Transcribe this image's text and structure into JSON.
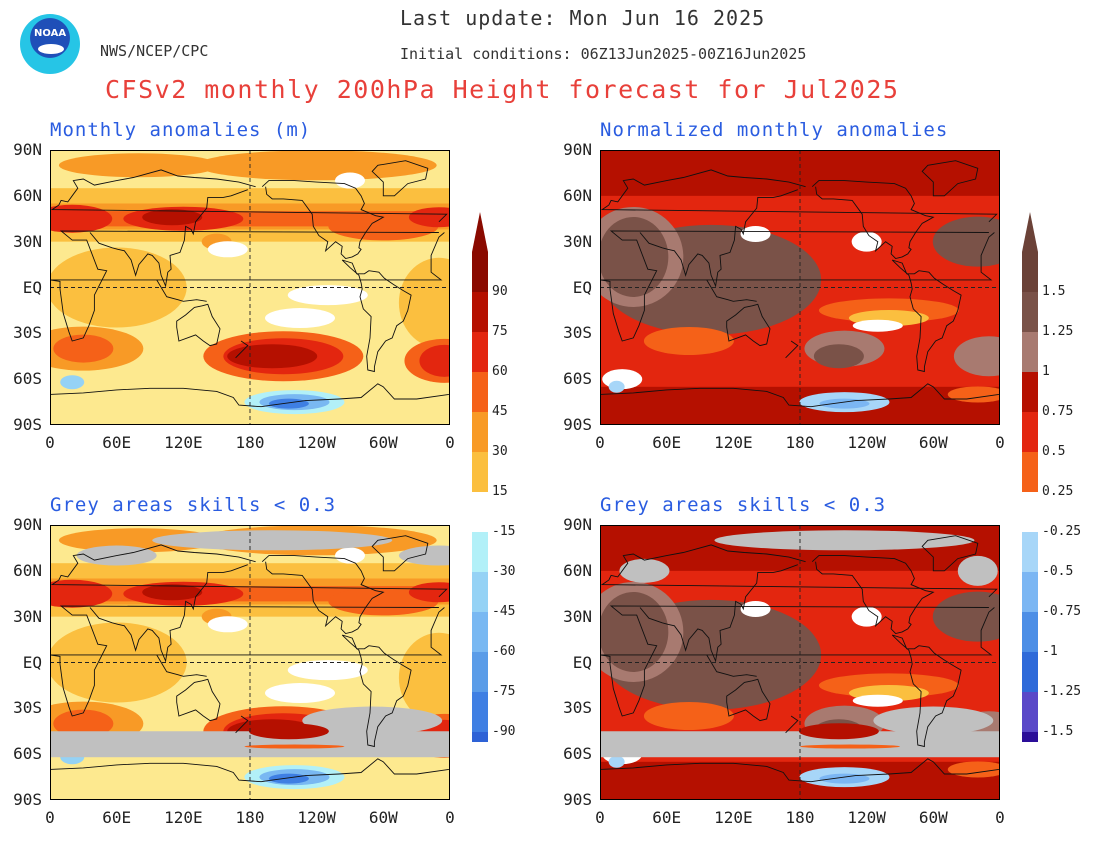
{
  "header": {
    "last_update": "Last update: Mon Jun 16 2025",
    "init_conditions": "Initial conditions: 06Z13Jun2025-00Z16Jun2025",
    "org": "NWS/NCEP/CPC",
    "title": "CFSv2 monthly 200hPa Height forecast for Jul2025",
    "logo_text": "NOAA"
  },
  "panels": [
    {
      "title": "Monthly anomalies (m)",
      "kind": "abs",
      "grey": false
    },
    {
      "title": "Normalized monthly anomalies",
      "kind": "norm",
      "grey": false
    },
    {
      "title": "Grey areas skills < 0.3",
      "kind": "abs",
      "grey": true
    },
    {
      "title": "Grey areas skills < 0.3",
      "kind": "norm",
      "grey": true
    }
  ],
  "axes": {
    "lat_labels": [
      "90N",
      "60N",
      "30N",
      "EQ",
      "30S",
      "60S",
      "90S"
    ],
    "lon_labels": [
      "0",
      "60E",
      "120E",
      "180",
      "120W",
      "60W",
      "0"
    ]
  },
  "colorbar_abs": {
    "labels": [
      "90",
      "75",
      "60",
      "45",
      "30",
      "15",
      "-15",
      "-30",
      "-45",
      "-60",
      "-75",
      "-90"
    ]
  },
  "colorbar_norm": {
    "labels": [
      "1.5",
      "1.25",
      "1",
      "0.75",
      "0.5",
      "0.25",
      "-0.25",
      "-0.5",
      "-0.75",
      "-1",
      "-1.25",
      "-1.5"
    ]
  },
  "colors": {
    "pos_abs": [
      "#fde98f",
      "#fbbf3f",
      "#f89a26",
      "#f56118",
      "#e3260f",
      "#b51000",
      "#8a0a00"
    ],
    "neg": [
      "#b2f0f8",
      "#95d2f5",
      "#79b8f2",
      "#5a9ce8",
      "#3f7fe3",
      "#2e62d6",
      "#1b3ec8"
    ],
    "pos_norm_top": [
      "#fbbf3f",
      "#f56118",
      "#e3260f",
      "#b51000",
      "#a87a70",
      "#7a5248"
    ],
    "neg_norm": [
      "#a7d6f8",
      "#7bb6f3",
      "#4c8ee6",
      "#2e6ad9",
      "#5a48c8",
      "#2b0e99"
    ],
    "grey": "#c0c0c0",
    "title_red": "#e8403a",
    "title_blue": "#2a5ce0"
  }
}
